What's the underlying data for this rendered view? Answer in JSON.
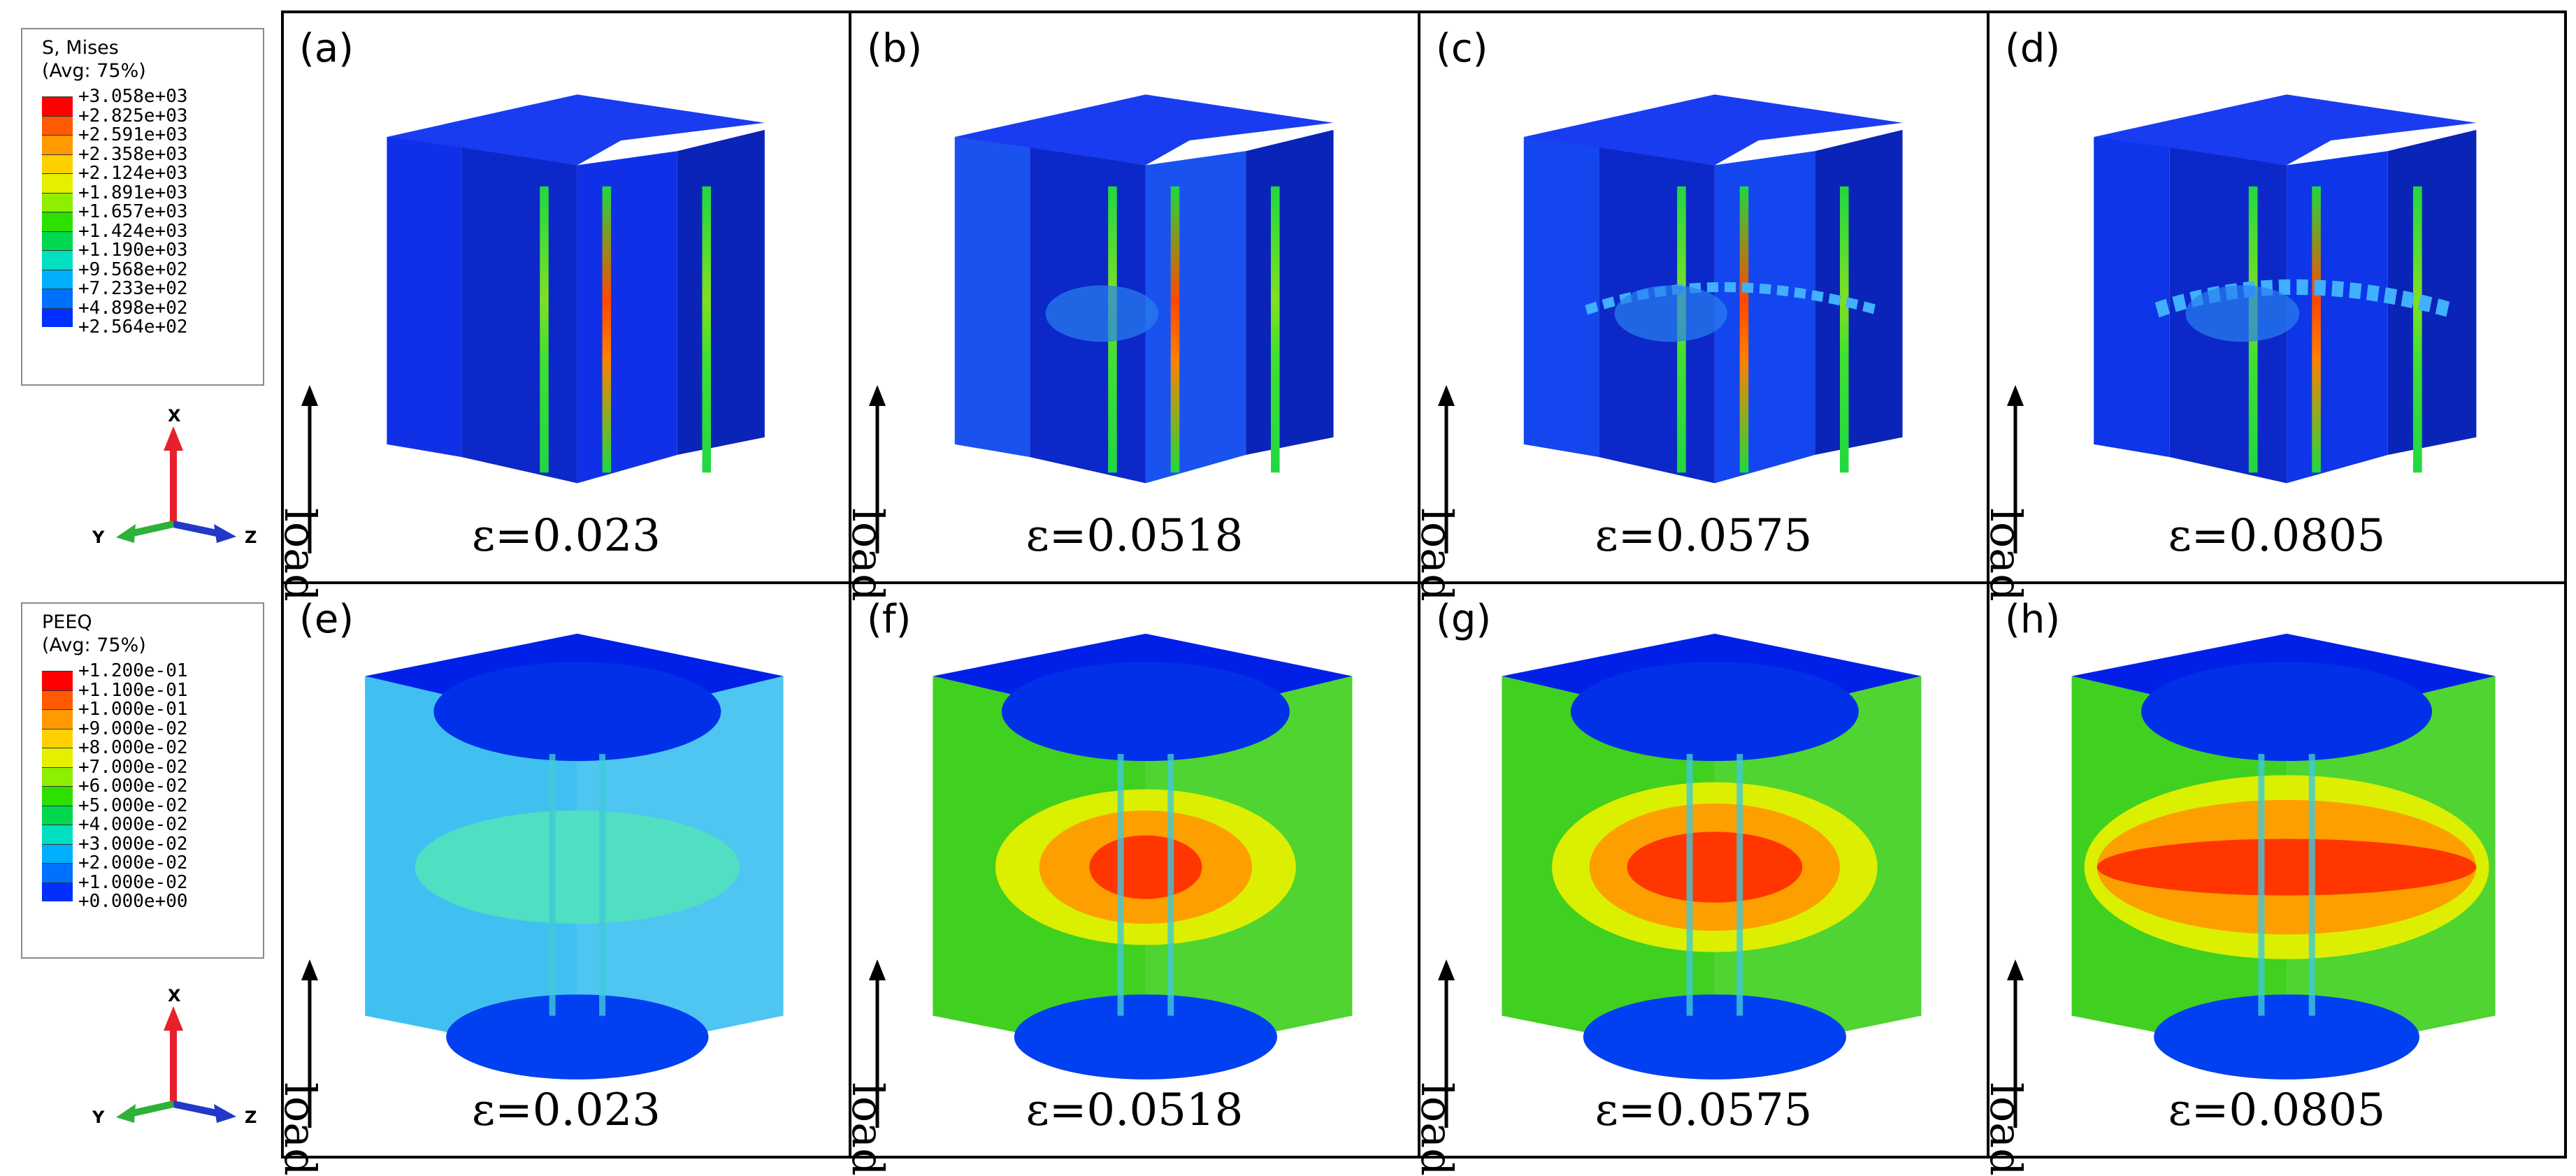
{
  "legends": [
    {
      "title_line1": "S, Mises",
      "title_line2": "(Avg: 75%)",
      "entries": [
        "+3.058e+03",
        "+2.825e+03",
        "+2.591e+03",
        "+2.358e+03",
        "+2.124e+03",
        "+1.891e+03",
        "+1.657e+03",
        "+1.424e+03",
        "+1.190e+03",
        "+9.568e+02",
        "+7.233e+02",
        "+4.898e+02",
        "+2.564e+02"
      ],
      "colors": [
        "#ff0000",
        "#ff5a00",
        "#ff9a00",
        "#ffd000",
        "#e4f000",
        "#8ef000",
        "#2ee000",
        "#00d850",
        "#00e0c0",
        "#00b0ff",
        "#0070ff",
        "#0030ff",
        "#0000ff"
      ]
    },
    {
      "title_line1": "PEEQ",
      "title_line2": "(Avg: 75%)",
      "entries": [
        "+1.200e-01",
        "+1.100e-01",
        "+1.000e-01",
        "+9.000e-02",
        "+8.000e-02",
        "+7.000e-02",
        "+6.000e-02",
        "+5.000e-02",
        "+4.000e-02",
        "+3.000e-02",
        "+2.000e-02",
        "+1.000e-02",
        "+0.000e+00"
      ],
      "colors": [
        "#ff0000",
        "#ff5a00",
        "#ff9a00",
        "#ffd000",
        "#e4f000",
        "#8ef000",
        "#2ee000",
        "#00d850",
        "#00e0c0",
        "#00b0ff",
        "#0070ff",
        "#0030ff",
        "#0000ff"
      ]
    }
  ],
  "triad": {
    "x": "X",
    "y": "Y",
    "z": "Z"
  },
  "load_label": "load",
  "panels": [
    {
      "label": "(a)",
      "strain": "ε=0.023",
      "type": "mises",
      "level": 0
    },
    {
      "label": "(b)",
      "strain": "ε=0.0518",
      "type": "mises",
      "level": 1
    },
    {
      "label": "(c)",
      "strain": "ε=0.0575",
      "type": "mises",
      "level": 2
    },
    {
      "label": "(d)",
      "strain": "ε=0.0805",
      "type": "mises",
      "level": 3
    },
    {
      "label": "(e)",
      "strain": "ε=0.023",
      "type": "peeq",
      "level": 0
    },
    {
      "label": "(f)",
      "strain": "ε=0.0518",
      "type": "peeq",
      "level": 1
    },
    {
      "label": "(g)",
      "strain": "ε=0.0575",
      "type": "peeq",
      "level": 2
    },
    {
      "label": "(h)",
      "strain": "ε=0.0805",
      "type": "peeq",
      "level": 3
    }
  ]
}
